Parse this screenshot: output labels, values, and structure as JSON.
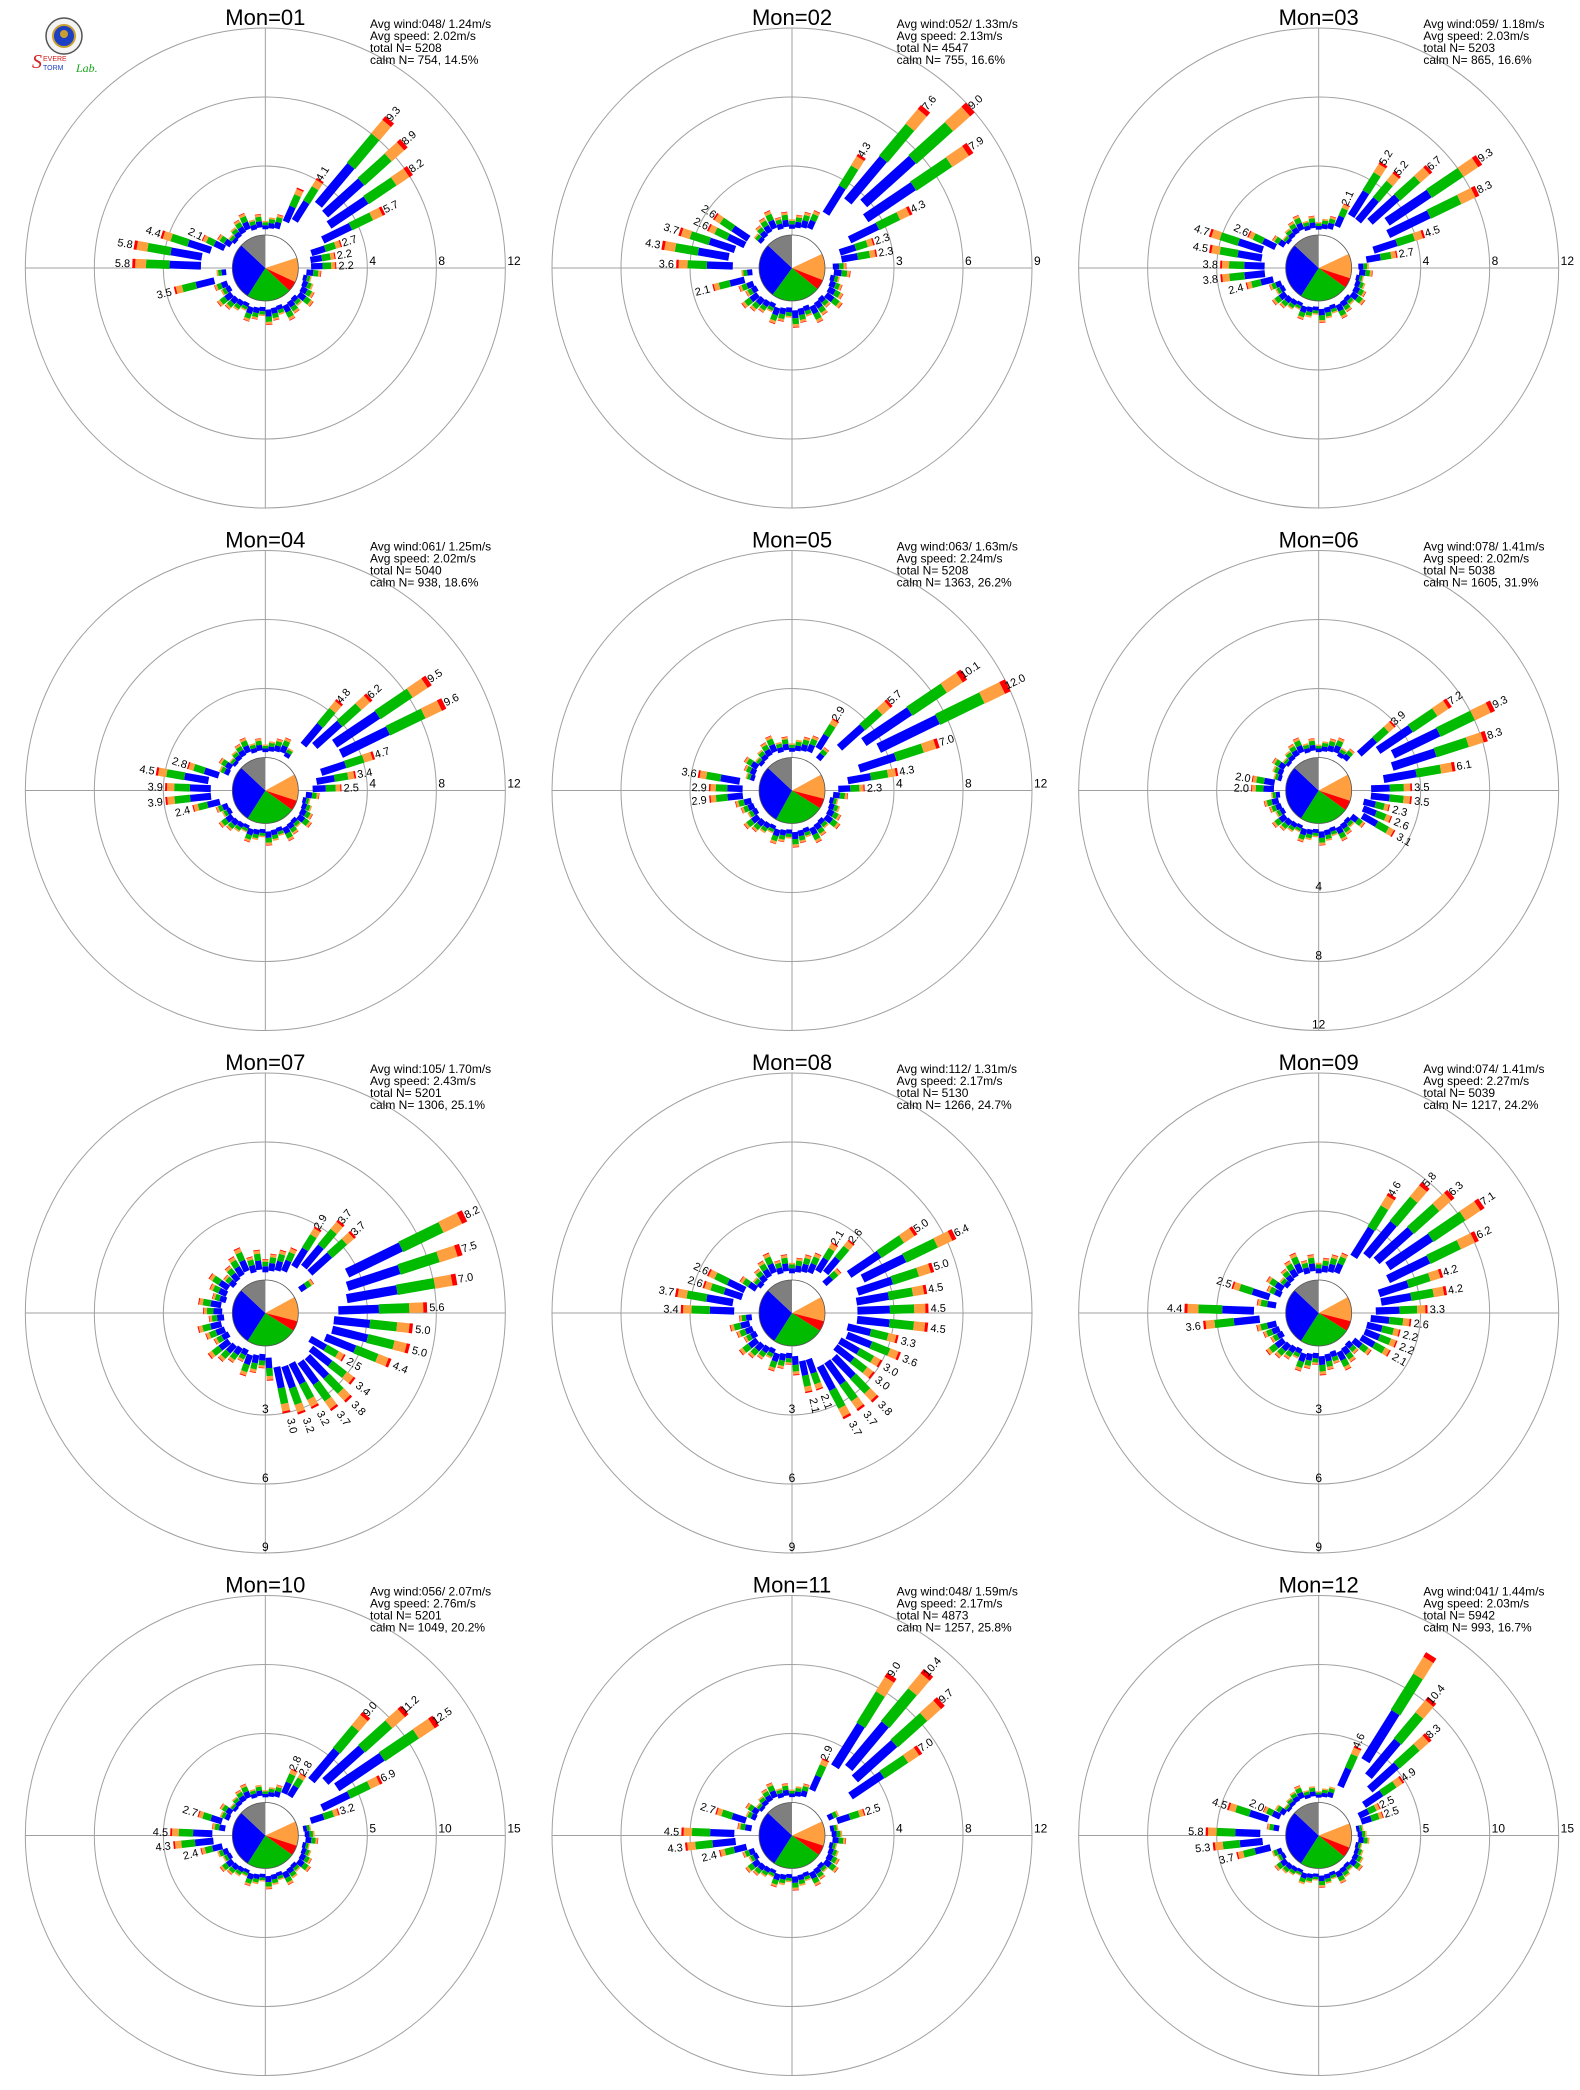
{
  "logo": {
    "line1": "Severe",
    "line2": "Storm",
    "line3": "Lab.",
    "colors": {
      "s": "#d42020",
      "storm": "#1d3fc4",
      "lab": "#17a51a"
    }
  },
  "colors": {
    "calm_gray": "#7f7f7f",
    "white": "#ffffff",
    "blue": "#0000ff",
    "green": "#00bb00",
    "orange": "#ff9f3f",
    "red": "#ff0000",
    "magenta": "#cc00cc",
    "grid": "#a0a0a0"
  },
  "chart_data": [
    {
      "type": "polar-bar",
      "title": "Mon=01",
      "stats": [
        "Avg wind:048/ 1.24m/s",
        "Avg speed: 2.02m/s",
        "total N=      5208",
        "calm N=    754,  14.5%"
      ],
      "ring_values": [
        4,
        8,
        12
      ],
      "ring_labels": [
        "4",
        "8",
        "12"
      ],
      "label_angle": 90,
      "pie_fractions": [
        0.2,
        0.12,
        0.05,
        0.22,
        0.28,
        0.13
      ],
      "petals": [
        {
          "dir": 22,
          "value": 3.1
        },
        {
          "dir": 30,
          "value": 4.1,
          "label": "4.1"
        },
        {
          "dir": 38,
          "value": 9.3,
          "label": "9.3"
        },
        {
          "dir": 46,
          "value": 8.9,
          "label": "8.9"
        },
        {
          "dir": 54,
          "value": 8.2,
          "label": "8.2"
        },
        {
          "dir": 62,
          "value": 5.7,
          "label": "5.7"
        },
        {
          "dir": 70,
          "value": 2.7,
          "label": "2.7"
        },
        {
          "dir": 78,
          "value": 2.2,
          "label": "2.2"
        },
        {
          "dir": 86,
          "value": 2.2,
          "label": "2.2"
        },
        {
          "dir": 270,
          "value": 5.8,
          "label": "5.8"
        },
        {
          "dir": 278,
          "value": 5.8,
          "label": "5.8"
        },
        {
          "dir": 286,
          "value": 4.4,
          "label": "4.4"
        },
        {
          "dir": 298,
          "value": 2.1,
          "label": "2.1"
        },
        {
          "dir": 258,
          "value": 3.5,
          "label": "3.5"
        }
      ],
      "default_value": 1.2
    },
    {
      "type": "polar-bar",
      "title": "Mon=02",
      "stats": [
        "Avg wind:052/ 1.33m/s",
        "Avg speed: 2.13m/s",
        "total N=      4547",
        "calm N=    755,  16.6%"
      ],
      "ring_values": [
        3,
        6,
        9
      ],
      "ring_labels": [
        "3",
        "6",
        "9"
      ],
      "label_angle": 90,
      "pie_fractions": [
        0.18,
        0.13,
        0.05,
        0.24,
        0.27,
        0.13
      ],
      "petals": [
        {
          "dir": 30,
          "value": 4.3,
          "label": "4.3"
        },
        {
          "dir": 36,
          "value": 8.2
        },
        {
          "dir": 42,
          "value": 7.6,
          "label": "7.6"
        },
        {
          "dir": 50,
          "value": 9.0,
          "label": "9.0"
        },
        {
          "dir": 58,
          "value": 7.9,
          "label": "7.9"
        },
        {
          "dir": 66,
          "value": 4.3,
          "label": "4.3"
        },
        {
          "dir": 76,
          "value": 2.3,
          "label": "2.3"
        },
        {
          "dir": 270,
          "value": 3.6,
          "label": "3.6"
        },
        {
          "dir": 280,
          "value": 4.3,
          "label": "4.3"
        },
        {
          "dir": 290,
          "value": 3.7,
          "label": "3.7"
        },
        {
          "dir": 300,
          "value": 2.6,
          "label": "2.6"
        },
        {
          "dir": 258,
          "value": 2.1,
          "label": "2.1"
        }
      ],
      "default_value": 1.0
    },
    {
      "type": "polar-bar",
      "title": "Mon=03",
      "stats": [
        "Avg wind:059/ 1.18m/s",
        "Avg speed: 2.03m/s",
        "total N=      5203",
        "calm N=    865,  16.6%"
      ],
      "ring_values": [
        4,
        8,
        12
      ],
      "ring_labels": [
        "4",
        "8",
        "12"
      ],
      "label_angle": 90,
      "pie_fractions": [
        0.18,
        0.12,
        0.05,
        0.24,
        0.28,
        0.13
      ],
      "petals": [
        {
          "dir": 26,
          "value": 2.1,
          "label": "2.1"
        },
        {
          "dir": 36,
          "value": 5.2,
          "label": "5.2"
        },
        {
          "dir": 46,
          "value": 6.7,
          "label": "6.7"
        },
        {
          "dir": 56,
          "value": 9.3,
          "label": "9.3"
        },
        {
          "dir": 64,
          "value": 8.3,
          "label": "8.3"
        },
        {
          "dir": 74,
          "value": 4.5,
          "label": "4.5"
        },
        {
          "dir": 82,
          "value": 2.7,
          "label": "2.7"
        },
        {
          "dir": 268,
          "value": 3.8,
          "label": "3.8"
        },
        {
          "dir": 276,
          "value": 4.5,
          "label": "4.5"
        },
        {
          "dir": 286,
          "value": 4.7,
          "label": "4.7"
        },
        {
          "dir": 298,
          "value": 2.6,
          "label": "2.6"
        },
        {
          "dir": 256,
          "value": 2.4,
          "label": "2.4"
        }
      ],
      "default_value": 1.1
    },
    {
      "type": "polar-bar",
      "title": "Mon=04",
      "stats": [
        "Avg wind:061/ 1.25m/s",
        "Avg speed: 2.02m/s",
        "total N=      5040",
        "calm N=    938,  18.6%"
      ],
      "ring_values": [
        4,
        8,
        12
      ],
      "ring_labels": [
        "4",
        "8",
        "12"
      ],
      "label_angle": 90,
      "pie_fractions": [
        0.17,
        0.13,
        0.05,
        0.24,
        0.28,
        0.13
      ],
      "petals": [
        {
          "dir": 40,
          "value": 4.8,
          "label": "4.8"
        },
        {
          "dir": 48,
          "value": 6.2,
          "label": "6.2"
        },
        {
          "dir": 58,
          "value": 9.5,
          "label": "9.5"
        },
        {
          "dir": 66,
          "value": 9.6,
          "label": "9.6"
        },
        {
          "dir": 76,
          "value": 4.7,
          "label": "4.7"
        },
        {
          "dir": 82,
          "value": 3.4,
          "label": "3.4"
        },
        {
          "dir": 88,
          "value": 2.5,
          "label": "2.5"
        },
        {
          "dir": 268,
          "value": 3.9,
          "label": "3.9"
        },
        {
          "dir": 276,
          "value": 4.5,
          "label": "4.5"
        },
        {
          "dir": 288,
          "value": 2.8,
          "label": "2.8"
        },
        {
          "dir": 256,
          "value": 2.4,
          "label": "2.4"
        }
      ],
      "default_value": 1.1
    },
    {
      "type": "polar-bar",
      "title": "Mon=05",
      "stats": [
        "Avg wind:063/ 1.63m/s",
        "Avg speed: 2.24m/s",
        "total N=      5208",
        "calm N=   1363,  26.2%"
      ],
      "ring_values": [
        4,
        8,
        12
      ],
      "ring_labels": [
        "4",
        "8",
        "12"
      ],
      "label_angle": 90,
      "pie_fractions": [
        0.17,
        0.12,
        0.05,
        0.24,
        0.29,
        0.13
      ],
      "petals": [
        {
          "dir": 34,
          "value": 2.9,
          "label": "2.9"
        },
        {
          "dir": 46,
          "value": 5.7,
          "label": "5.7"
        },
        {
          "dir": 56,
          "value": 10.1,
          "label": "10.1"
        },
        {
          "dir": 64,
          "value": 12.0,
          "label": "12.0"
        },
        {
          "dir": 72,
          "value": 7.0,
          "label": "7.0"
        },
        {
          "dir": 80,
          "value": 4.3,
          "label": "4.3"
        },
        {
          "dir": 88,
          "value": 2.3,
          "label": "2.3"
        },
        {
          "dir": 268,
          "value": 2.9,
          "label": "2.9"
        },
        {
          "dir": 276,
          "value": 3.6,
          "label": "3.6"
        }
      ],
      "default_value": 1.2
    },
    {
      "type": "polar-bar",
      "title": "Mon=06",
      "stats": [
        "Avg wind:078/ 1.41m/s",
        "Avg speed: 2.02m/s",
        "total N=      5038",
        "calm N=   1605,  31.9%"
      ],
      "ring_values": [
        4,
        8,
        12
      ],
      "ring_labels": [
        "4",
        "8",
        "12"
      ],
      "label_angle": 180,
      "pie_fractions": [
        0.17,
        0.13,
        0.05,
        0.24,
        0.28,
        0.13
      ],
      "petals": [
        {
          "dir": 46,
          "value": 3.9,
          "label": "3.9"
        },
        {
          "dir": 56,
          "value": 7.2,
          "label": "7.2"
        },
        {
          "dir": 64,
          "value": 9.3,
          "label": "9.3"
        },
        {
          "dir": 72,
          "value": 8.3,
          "label": "8.3"
        },
        {
          "dir": 82,
          "value": 6.1,
          "label": "6.1"
        },
        {
          "dir": 92,
          "value": 3.5,
          "label": "3.5"
        },
        {
          "dir": 102,
          "value": 2.3,
          "label": "2.3"
        },
        {
          "dir": 112,
          "value": 2.6,
          "label": "2.6"
        },
        {
          "dir": 122,
          "value": 3.1,
          "label": "3.1"
        },
        {
          "dir": 276,
          "value": 2.0,
          "label": "2.0"
        }
      ],
      "default_value": 1.1
    },
    {
      "type": "polar-bar",
      "title": "Mon=07",
      "stats": [
        "Avg wind:105/ 1.70m/s",
        "Avg speed: 2.43m/s",
        "total N=      5201",
        "calm N=   1306,  25.1%"
      ],
      "ring_values": [
        3,
        6,
        9
      ],
      "ring_labels": [
        "3",
        "6",
        "9"
      ],
      "label_angle": 180,
      "pie_fractions": [
        0.17,
        0.12,
        0.05,
        0.25,
        0.28,
        0.13
      ],
      "petals": [
        {
          "dir": 34,
          "value": 2.9,
          "label": "2.9"
        },
        {
          "dir": 44,
          "value": 3.7,
          "label": "3.7"
        },
        {
          "dir": 62,
          "value": 8.2,
          "label": "8.2"
        },
        {
          "dir": 70,
          "value": 7.5,
          "label": "7.5"
        },
        {
          "dir": 78,
          "value": 7.0,
          "label": "7.0"
        },
        {
          "dir": 90,
          "value": 5.6,
          "label": "5.6"
        },
        {
          "dir": 100,
          "value": 5.0,
          "label": "5.0"
        },
        {
          "dir": 110,
          "value": 4.4,
          "label": "4.4"
        },
        {
          "dir": 120,
          "value": 2.5,
          "label": "2.5"
        },
        {
          "dir": 128,
          "value": 3.4,
          "label": "3.4"
        },
        {
          "dir": 136,
          "value": 3.8,
          "label": "3.8"
        },
        {
          "dir": 146,
          "value": 3.7,
          "label": "3.7"
        },
        {
          "dir": 156,
          "value": 3.2,
          "label": "3.2"
        },
        {
          "dir": 168,
          "value": 3.0,
          "label": "3.0"
        }
      ],
      "default_value": 1.3
    },
    {
      "type": "polar-bar",
      "title": "Mon=08",
      "stats": [
        "Avg wind:112/ 1.31m/s",
        "Avg speed: 2.17m/s",
        "total N=      5130",
        "calm N=   1266,  24.7%"
      ],
      "ring_values": [
        3,
        6,
        9
      ],
      "ring_labels": [
        "3",
        "6",
        "9"
      ],
      "label_angle": 180,
      "pie_fractions": [
        0.17,
        0.12,
        0.05,
        0.25,
        0.28,
        0.13
      ],
      "petals": [
        {
          "dir": 30,
          "value": 2.1,
          "label": "2.1"
        },
        {
          "dir": 40,
          "value": 2.6,
          "label": "2.6"
        },
        {
          "dir": 54,
          "value": 5.0,
          "label": "5.0"
        },
        {
          "dir": 62,
          "value": 6.4,
          "label": "6.4"
        },
        {
          "dir": 72,
          "value": 5.0,
          "label": "5.0"
        },
        {
          "dir": 82,
          "value": 4.5,
          "label": "4.5"
        },
        {
          "dir": 92,
          "value": 4.5,
          "label": "4.5"
        },
        {
          "dir": 104,
          "value": 3.3,
          "label": "3.3"
        },
        {
          "dir": 114,
          "value": 3.6,
          "label": "3.6"
        },
        {
          "dir": 124,
          "value": 3.0,
          "label": "3.0"
        },
        {
          "dir": 136,
          "value": 3.8,
          "label": "3.8"
        },
        {
          "dir": 148,
          "value": 3.7,
          "label": "3.7"
        },
        {
          "dir": 164,
          "value": 2.1,
          "label": "2.1"
        },
        {
          "dir": 270,
          "value": 3.4,
          "label": "3.4"
        },
        {
          "dir": 280,
          "value": 3.7,
          "label": "3.7"
        },
        {
          "dir": 292,
          "value": 2.6,
          "label": "2.6"
        }
      ],
      "default_value": 1.1
    },
    {
      "type": "polar-bar",
      "title": "Mon=09",
      "stats": [
        "Avg wind:074/ 1.41m/s",
        "Avg speed: 2.27m/s",
        "total N=      5039",
        "calm N=   1217,  24.2%"
      ],
      "ring_values": [
        3,
        6,
        9
      ],
      "ring_labels": [
        "3",
        "6",
        "9"
      ],
      "label_angle": 180,
      "pie_fractions": [
        0.17,
        0.12,
        0.05,
        0.25,
        0.28,
        0.13
      ],
      "petals": [
        {
          "dir": 34,
          "value": 4.6,
          "label": "4.6"
        },
        {
          "dir": 42,
          "value": 5.8,
          "label": "5.8"
        },
        {
          "dir": 50,
          "value": 6.3,
          "label": "6.3"
        },
        {
          "dir": 58,
          "value": 7.1,
          "label": "7.1"
        },
        {
          "dir": 66,
          "value": 6.2,
          "label": "6.2"
        },
        {
          "dir": 76,
          "value": 4.2,
          "label": "4.2"
        },
        {
          "dir": 88,
          "value": 3.3,
          "label": "3.3"
        },
        {
          "dir": 98,
          "value": 2.6,
          "label": "2.6"
        },
        {
          "dir": 108,
          "value": 2.2,
          "label": "2.2"
        },
        {
          "dir": 116,
          "value": 2.1,
          "label": "2.1"
        },
        {
          "dir": 266,
          "value": 3.6,
          "label": "3.6"
        },
        {
          "dir": 274,
          "value": 4.4,
          "label": "4.4"
        },
        {
          "dir": 290,
          "value": 2.5,
          "label": "2.5"
        }
      ],
      "default_value": 1.1
    },
    {
      "type": "polar-bar",
      "title": "Mon=10",
      "stats": [
        "Avg wind:056/ 2.07m/s",
        "Avg speed: 2.76m/s",
        "total N=      5201",
        "calm N=   1049,  20.2%"
      ],
      "ring_values": [
        5,
        10,
        15
      ],
      "ring_labels": [
        "5",
        "10",
        "15"
      ],
      "label_angle": 90,
      "pie_fractions": [
        0.18,
        0.12,
        0.05,
        0.24,
        0.28,
        0.13
      ],
      "petals": [
        {
          "dir": 28,
          "value": 2.8,
          "label": "2.8"
        },
        {
          "dir": 38,
          "value": 9.0,
          "label": "9.0"
        },
        {
          "dir": 46,
          "value": 11.2,
          "label": "11.2"
        },
        {
          "dir": 54,
          "value": 12.5,
          "label": "12.5"
        },
        {
          "dir": 64,
          "value": 6.9,
          "label": "6.9"
        },
        {
          "dir": 74,
          "value": 3.2,
          "label": "3.2"
        },
        {
          "dir": 266,
          "value": 4.3,
          "label": "4.3"
        },
        {
          "dir": 274,
          "value": 4.5,
          "label": "4.5"
        },
        {
          "dir": 290,
          "value": 2.7,
          "label": "2.7"
        },
        {
          "dir": 256,
          "value": 2.4,
          "label": "2.4"
        }
      ],
      "default_value": 1.3
    },
    {
      "type": "polar-bar",
      "title": "Mon=11",
      "stats": [
        "Avg wind:048/ 1.59m/s",
        "Avg speed: 2.17m/s",
        "total N=      4873",
        "calm N=   1257,  25.8%"
      ],
      "ring_values": [
        4,
        8,
        12
      ],
      "ring_labels": [
        "4",
        "8",
        "12"
      ],
      "label_angle": 90,
      "pie_fractions": [
        0.18,
        0.12,
        0.05,
        0.24,
        0.28,
        0.13
      ],
      "petals": [
        {
          "dir": 22,
          "value": 2.9,
          "label": "2.9"
        },
        {
          "dir": 32,
          "value": 9.0,
          "label": "9.0"
        },
        {
          "dir": 40,
          "value": 10.4,
          "label": "10.4"
        },
        {
          "dir": 48,
          "value": 9.7,
          "label": "9.7"
        },
        {
          "dir": 58,
          "value": 7.0,
          "label": "7.0"
        },
        {
          "dir": 70,
          "value": 2.5,
          "label": "2.5"
        },
        {
          "dir": 266,
          "value": 4.3,
          "label": "4.3"
        },
        {
          "dir": 274,
          "value": 4.5,
          "label": "4.5"
        },
        {
          "dir": 288,
          "value": 2.7,
          "label": "2.7"
        },
        {
          "dir": 256,
          "value": 2.4,
          "label": "2.4"
        }
      ],
      "default_value": 1.1
    },
    {
      "type": "polar-bar",
      "title": "Mon=12",
      "stats": [
        "Avg wind:041/ 1.44m/s",
        "Avg speed: 2.03m/s",
        "total N=      5942",
        "calm N=    993,  16.7%"
      ],
      "ring_values": [
        5,
        10,
        15
      ],
      "ring_labels": [
        "5",
        "10",
        "15"
      ],
      "label_angle": 90,
      "pie_fractions": [
        0.19,
        0.12,
        0.05,
        0.23,
        0.28,
        0.13
      ],
      "petals": [
        {
          "dir": 24,
          "value": 4.6,
          "label": "4.6"
        },
        {
          "dir": 32,
          "value": 13.0
        },
        {
          "dir": 40,
          "value": 10.4,
          "label": "10.4"
        },
        {
          "dir": 48,
          "value": 8.3,
          "label": "8.3"
        },
        {
          "dir": 58,
          "value": 4.9,
          "label": "4.9"
        },
        {
          "dir": 68,
          "value": 2.5,
          "label": "2.5"
        },
        {
          "dir": 266,
          "value": 5.3,
          "label": "5.3"
        },
        {
          "dir": 274,
          "value": 5.8,
          "label": "5.8"
        },
        {
          "dir": 286,
          "value": 4.5,
          "label": "4.5"
        },
        {
          "dir": 298,
          "value": 2.0,
          "label": "2.0"
        },
        {
          "dir": 256,
          "value": 3.7,
          "label": "3.7"
        }
      ],
      "default_value": 1.2
    }
  ]
}
